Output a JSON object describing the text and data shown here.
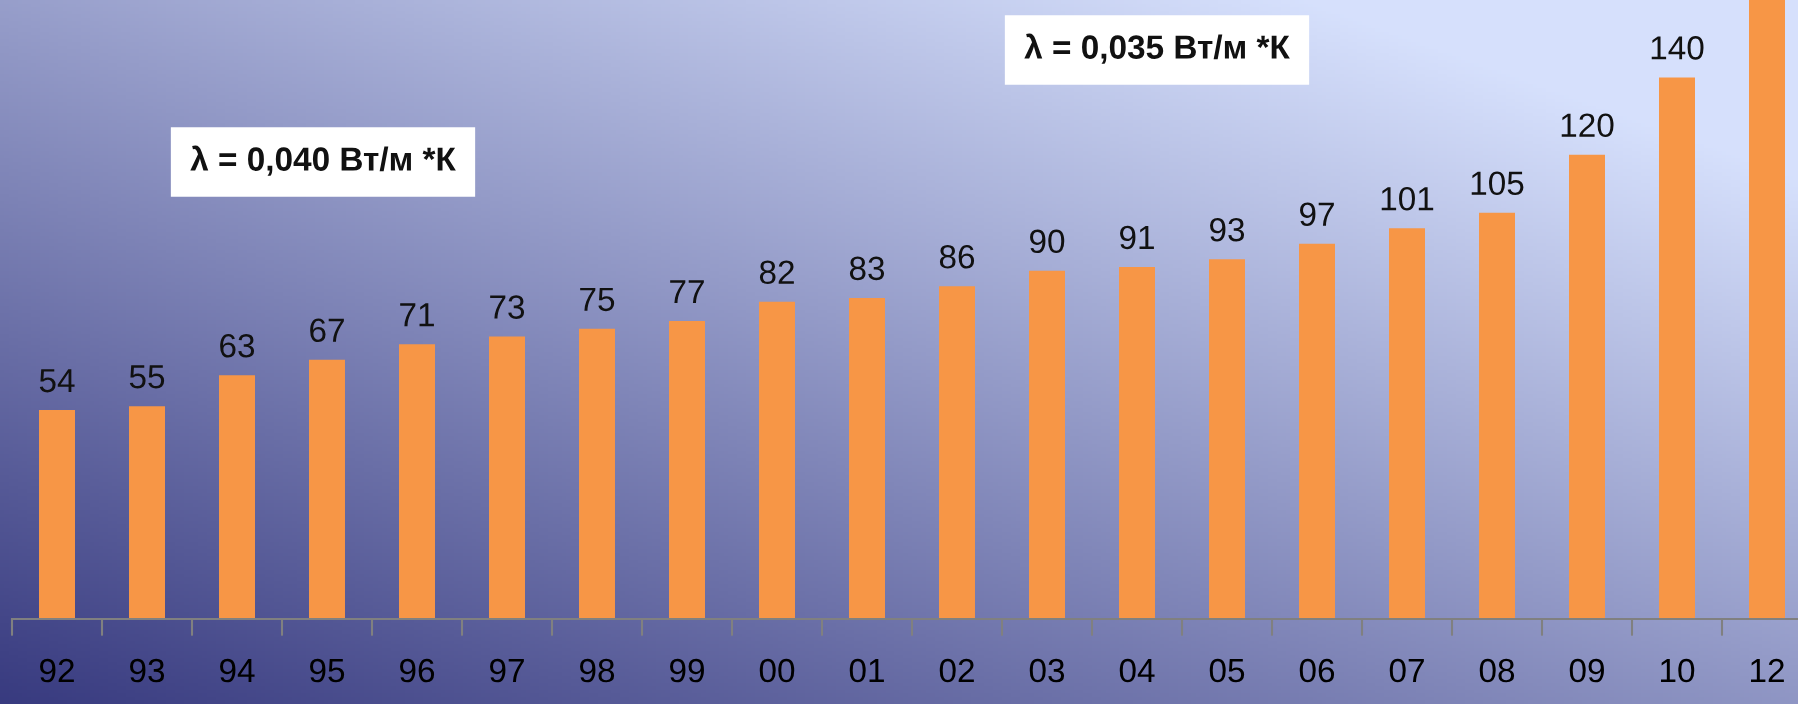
{
  "chart_data": {
    "type": "bar",
    "categories": [
      "92",
      "93",
      "94",
      "95",
      "96",
      "97",
      "98",
      "99",
      "00",
      "01",
      "02",
      "03",
      "04",
      "05",
      "06",
      "07",
      "08",
      "09",
      "10",
      "12"
    ],
    "values": [
      54,
      55,
      63,
      67,
      71,
      73,
      75,
      77,
      82,
      83,
      86,
      90,
      91,
      93,
      97,
      101,
      105,
      120,
      140,
      160
    ],
    "value_labels": [
      "54",
      "55",
      "63",
      "67",
      "71",
      "73",
      "75",
      "77",
      "82",
      "83",
      "86",
      "90",
      "91",
      "93",
      "97",
      "101",
      "105",
      "120",
      "140",
      null
    ],
    "color": "#f79646",
    "ylim": [
      0,
      160
    ],
    "relative": false,
    "grid": false,
    "legend": false,
    "tick_labels": "x",
    "annotations": [
      "λ = 0,040 Вт/м *К",
      "λ = 0,035 Вт/м *К"
    ]
  }
}
